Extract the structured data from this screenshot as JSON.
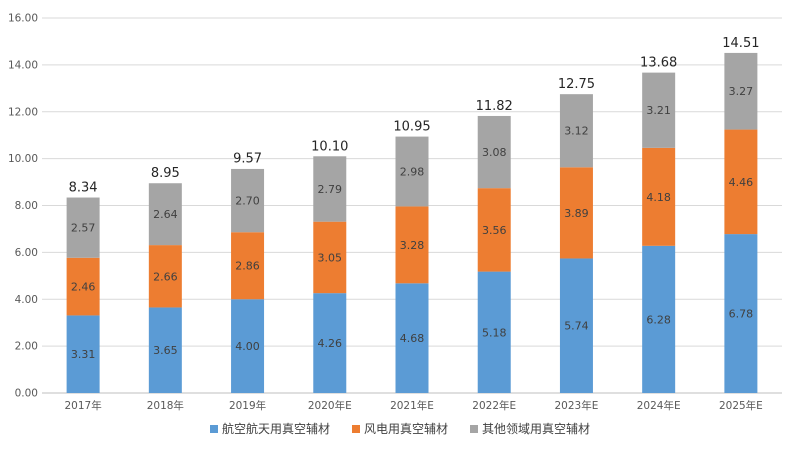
{
  "chart_data": {
    "type": "bar",
    "stacked": true,
    "title": "",
    "xlabel": "",
    "ylabel": "",
    "ylim": [
      0,
      16
    ],
    "yticks": [
      "0.00",
      "2.00",
      "4.00",
      "6.00",
      "8.00",
      "10.00",
      "12.00",
      "14.00",
      "16.00"
    ],
    "grid": true,
    "legend_position": "bottom",
    "categories": [
      "2017年",
      "2018年",
      "2019年",
      "2020年E",
      "2021年E",
      "2022年E",
      "2023年E",
      "2024年E",
      "2025年E"
    ],
    "series": [
      {
        "name": "航空航天用真空辅材",
        "color": "#5b9bd5",
        "values": [
          3.31,
          3.65,
          4.0,
          4.26,
          4.68,
          5.18,
          5.74,
          6.28,
          6.78
        ],
        "labels": [
          "3.31",
          "3.65",
          "4.00",
          "4.26",
          "4.68",
          "5.18",
          "5.74",
          "6.28",
          "6.78"
        ]
      },
      {
        "name": "风电用真空辅材",
        "color": "#ed7d31",
        "values": [
          2.46,
          2.66,
          2.86,
          3.05,
          3.28,
          3.56,
          3.89,
          4.18,
          4.46
        ],
        "labels": [
          "2.46",
          "2.66",
          "2.86",
          "3.05",
          "3.28",
          "3.56",
          "3.89",
          "4.18",
          "4.46"
        ]
      },
      {
        "name": "其他领域用真空辅材",
        "color": "#a5a5a5",
        "values": [
          2.57,
          2.64,
          2.7,
          2.79,
          2.98,
          3.08,
          3.12,
          3.21,
          3.27
        ],
        "labels": [
          "2.57",
          "2.64",
          "2.70",
          "2.79",
          "2.98",
          "3.08",
          "3.12",
          "3.21",
          "3.27"
        ]
      }
    ],
    "totals": [
      8.34,
      8.95,
      9.57,
      10.1,
      10.95,
      11.82,
      12.75,
      13.68,
      14.51
    ],
    "total_labels": [
      "8.34",
      "8.95",
      "9.57",
      "10.10",
      "10.95",
      "11.82",
      "12.75",
      "13.68",
      "14.51"
    ]
  }
}
